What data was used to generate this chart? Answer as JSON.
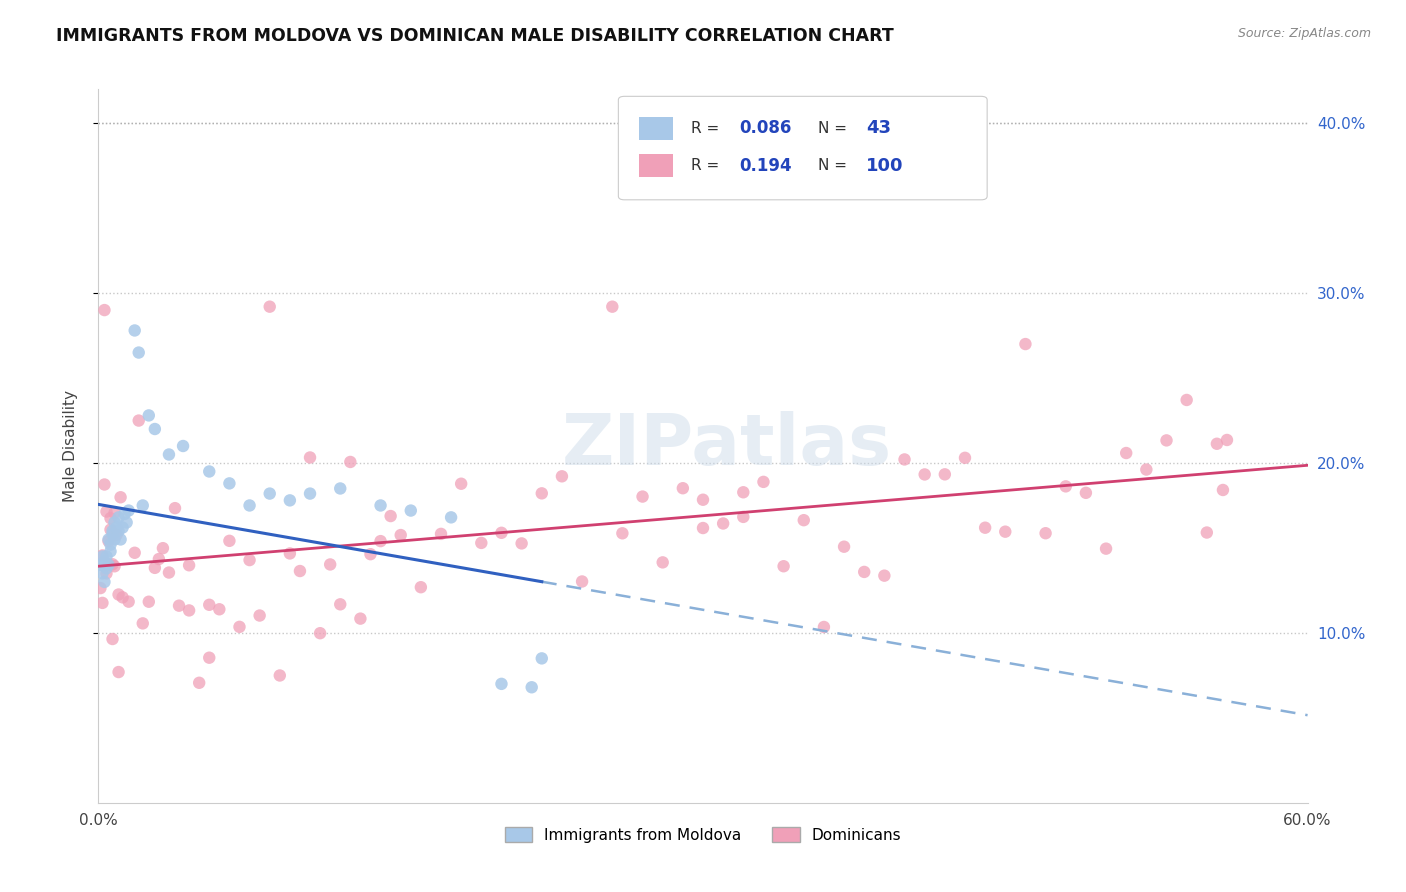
{
  "title": "IMMIGRANTS FROM MOLDOVA VS DOMINICAN MALE DISABILITY CORRELATION CHART",
  "source": "Source: ZipAtlas.com",
  "ylabel": "Male Disability",
  "xlim": [
    0.0,
    0.6
  ],
  "ylim": [
    0.0,
    0.42
  ],
  "moldova_color": "#a8c8e8",
  "dominican_color": "#f0a0b8",
  "moldova_line_color": "#3060c0",
  "dominican_line_color": "#d04070",
  "dashed_line_color": "#8ab0d8",
  "R_moldova": 0.086,
  "N_moldova": 43,
  "R_dominican": 0.194,
  "N_dominican": 100,
  "watermark": "ZIPatlas",
  "legend_labels": [
    "Immigrants from Moldova",
    "Dominicans"
  ],
  "legend_r_color": "#2244bb",
  "legend_text_color": "#333333"
}
